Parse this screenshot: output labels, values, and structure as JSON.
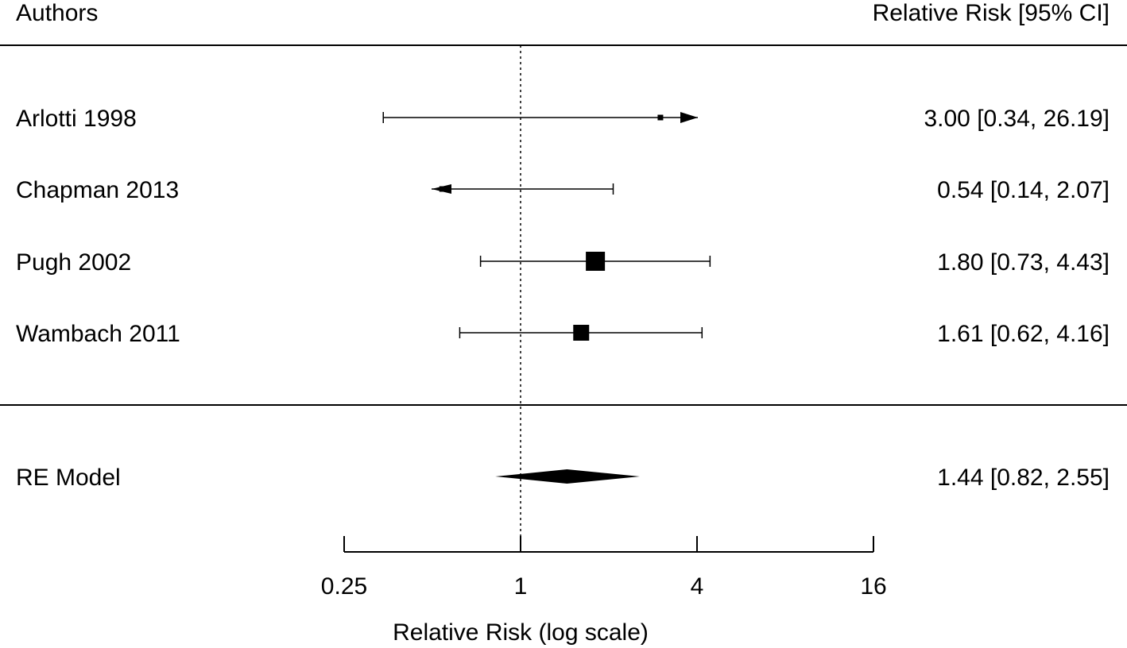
{
  "chart_data": {
    "type": "forest",
    "header": {
      "left": "Authors",
      "right": "Relative Risk [95% CI]"
    },
    "studies": [
      {
        "label": "Arlotti 1998",
        "rr": 3.0,
        "ci_low": 0.34,
        "ci_high": 26.19,
        "ci_text": "3.00 [0.34, 26.19]",
        "marker_size": "small",
        "arrow_right": true,
        "arrow_left": false
      },
      {
        "label": "Chapman 2013",
        "rr": 0.54,
        "ci_low": 0.14,
        "ci_high": 2.07,
        "ci_text": "0.54 [0.14,  2.07]",
        "marker_size": "small",
        "arrow_right": false,
        "arrow_left": true
      },
      {
        "label": "Pugh 2002",
        "rr": 1.8,
        "ci_low": 0.73,
        "ci_high": 4.43,
        "ci_text": "1.80 [0.73,  4.43]",
        "marker_size": "large",
        "arrow_right": false,
        "arrow_left": false
      },
      {
        "label": "Wambach 2011",
        "rr": 1.61,
        "ci_low": 0.62,
        "ci_high": 4.16,
        "ci_text": "1.61 [0.62,  4.16]",
        "marker_size": "medium",
        "arrow_right": false,
        "arrow_left": false
      }
    ],
    "summary": {
      "label": "RE Model",
      "rr": 1.44,
      "ci_low": 0.82,
      "ci_high": 2.55,
      "ci_text": "1.44 [0.82,  2.55]"
    },
    "xaxis": {
      "scale": "log",
      "label": "Relative Risk (log scale)",
      "ticks": [
        0.25,
        1,
        4,
        16
      ],
      "tick_labels": [
        "0.25",
        "1",
        "4",
        "16"
      ],
      "range": [
        0.25,
        16
      ],
      "reference_line": 1
    }
  }
}
